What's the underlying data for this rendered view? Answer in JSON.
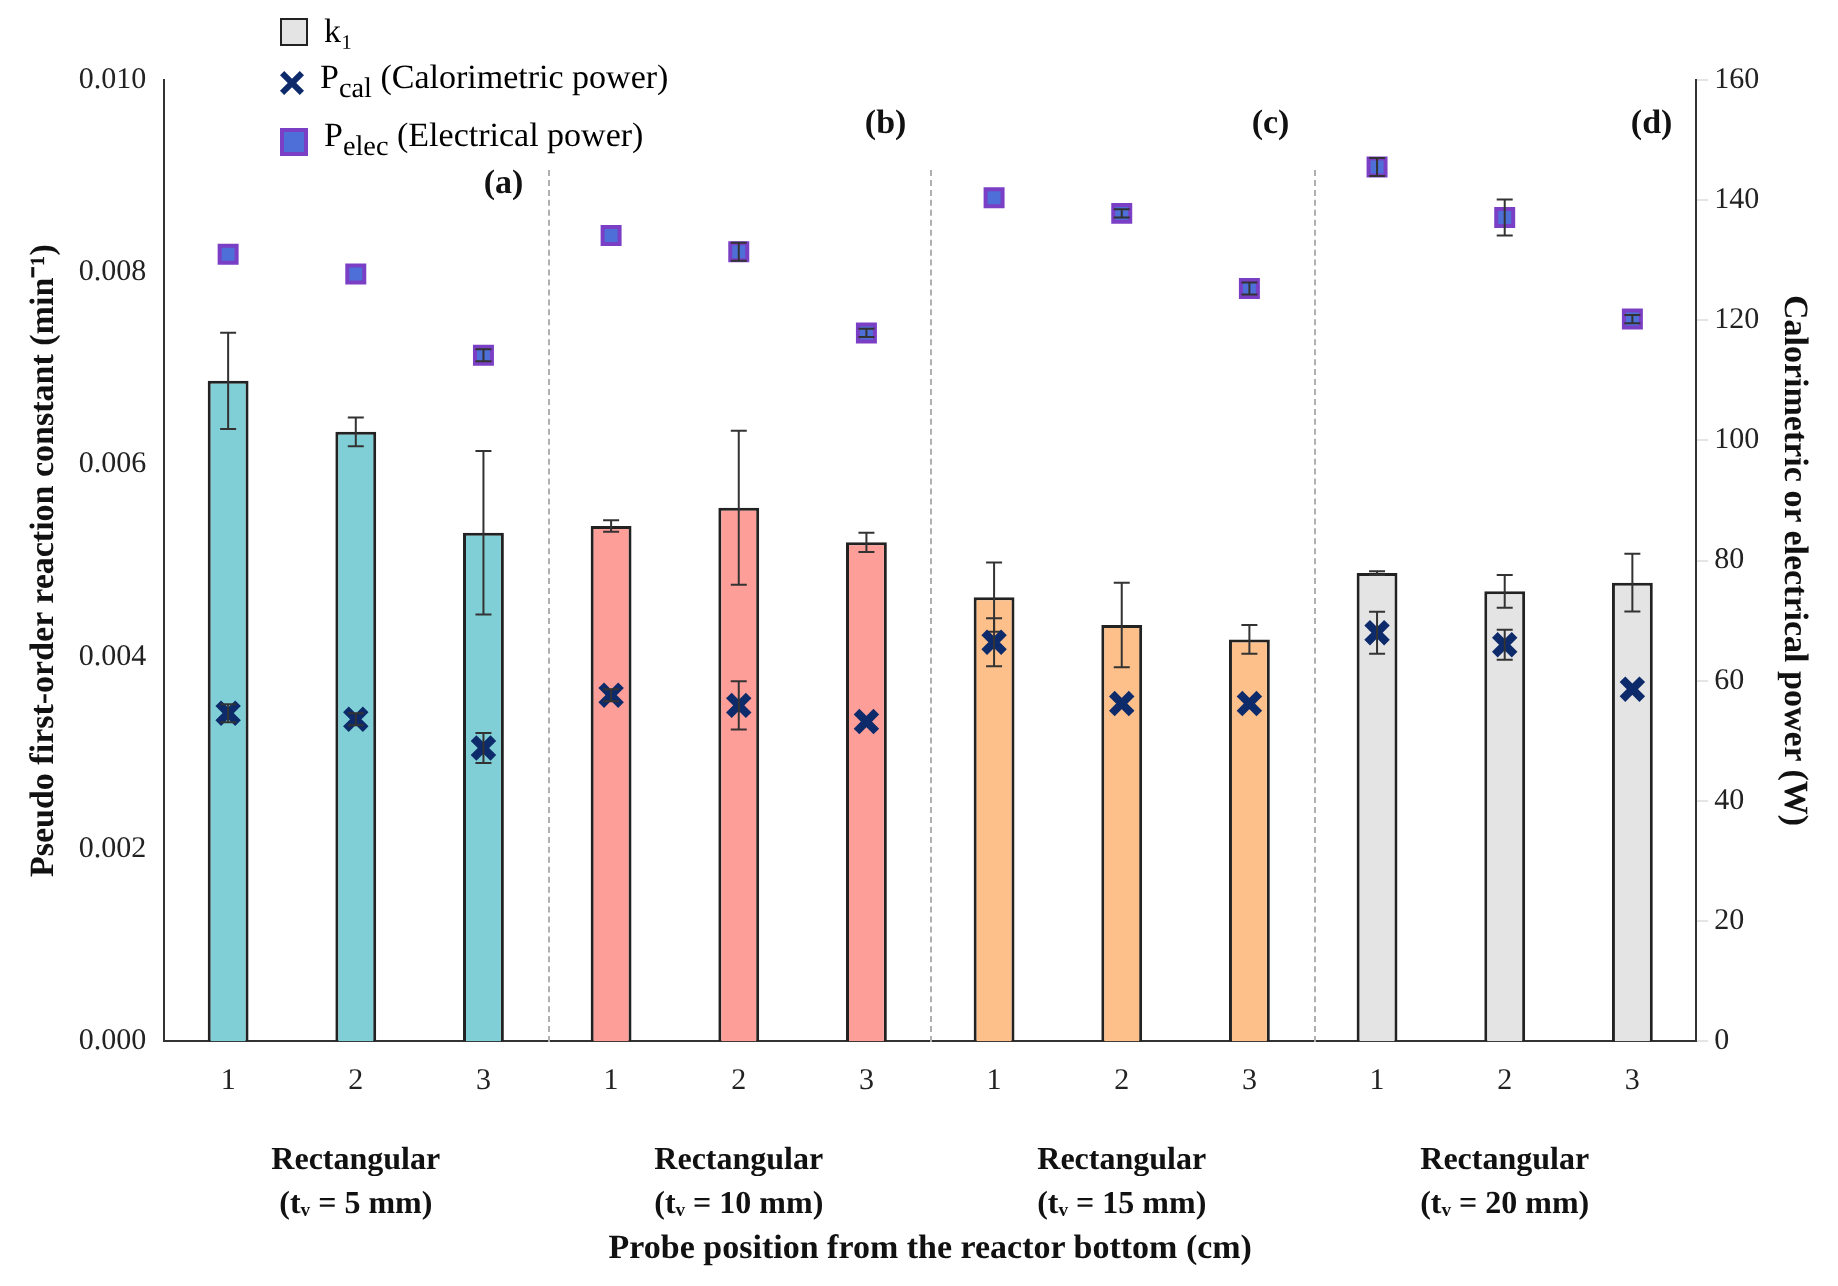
{
  "chart_data": {
    "type": "bar",
    "xlabel": "Probe position from the reactor bottom (cm)",
    "ylabel": "Pseudo first-order reaction constant (min⁻¹)",
    "y2label": "Calorimetric or electrical power (W)",
    "categories": [
      "1",
      "2",
      "3",
      "1",
      "2",
      "3",
      "1",
      "2",
      "3",
      "1",
      "2",
      "3"
    ],
    "series": [
      {
        "name": "k₁",
        "color": "#e4e4e4",
        "colors": [
          "#80cfd6",
          "#80cfd6",
          "#80cfd6",
          "#fd9e98",
          "#fd9e98",
          "#fd9e98",
          "#fdc08b",
          "#fdc08b",
          "#fdc08b",
          "#e4e4e4",
          "#e4e4e4",
          "#e4e4e4"
        ],
        "values": [
          0.00687,
          0.00634,
          0.00529,
          0.00536,
          0.00555,
          0.00519,
          0.00462,
          0.00433,
          0.00418,
          0.00487,
          0.00468,
          0.00477
        ],
        "errors": [
          0.0005,
          0.00015,
          0.00085,
          6e-05,
          0.0008,
          0.0001,
          0.00036,
          0.00044,
          0.00015,
          2e-05,
          0.00017,
          0.0003
        ]
      },
      {
        "name": "P$_{cal}$ (Calorimetric power)",
        "type": "scatter",
        "axis": "y2",
        "marker": "cross",
        "color": "#0d2a6b",
        "values": [
          54.6,
          53.6,
          48.8,
          57.6,
          55.9,
          53.2,
          66.4,
          56.2,
          56.2,
          68,
          66,
          58.6
        ],
        "errors": [
          1.5,
          1,
          2.5,
          1,
          4,
          null,
          4,
          null,
          null,
          3.5,
          2.5,
          null
        ]
      },
      {
        "name": "P$_{elec}$ (Electrical power)",
        "type": "scatter",
        "axis": "y2",
        "marker": "square",
        "color": "#7a3fc4",
        "values": [
          131,
          127.7,
          114.2,
          134.1,
          131.4,
          117.9,
          140.4,
          137.8,
          125.3,
          145.5,
          137.1,
          120.2
        ],
        "errors": [
          null,
          null,
          1,
          null,
          1.5,
          0.7,
          null,
          0.7,
          1,
          1.5,
          3,
          0.7
        ]
      }
    ],
    "ylim": [
      0,
      0.01
    ],
    "yticks": [
      {
        "value": 0,
        "label": "0.000"
      },
      {
        "value": 0.002,
        "label": "0.002"
      },
      {
        "value": 0.004,
        "label": "0.004"
      },
      {
        "value": 0.006,
        "label": "0.006"
      },
      {
        "value": 0.008,
        "label": "0.008"
      },
      {
        "value": 0.01,
        "label": "0.010"
      }
    ],
    "y2lim": [
      0,
      160
    ],
    "y2ticks": [
      0,
      20,
      40,
      60,
      80,
      100,
      120,
      140,
      160
    ],
    "annotations": [
      "Rectangular (tᵥ = 5 mm)",
      "Rectangular (tᵥ = 10 mm)",
      "Rectangular (tᵥ = 15 mm)",
      "Rectangular (tᵥ = 20 mm)",
      "(a)",
      "(b)",
      "(c)",
      "(d)"
    ],
    "legend": "top left",
    "grid": false
  }
}
